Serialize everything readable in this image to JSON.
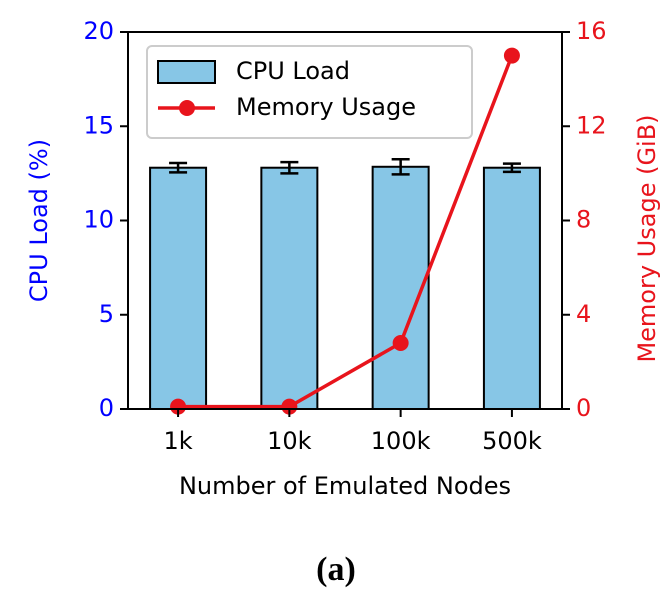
{
  "chart_data": {
    "type": "bar",
    "xlabel": "Number of Emulated Nodes",
    "ylabel": "CPU Load (%)",
    "y2label": "Memory Usage (GiB)",
    "y_axis_color": "#0000ff",
    "y2_axis_color": "#e8141c",
    "categories": [
      "1k",
      "10k",
      "100k",
      "500k"
    ],
    "series": [
      {
        "name": "CPU Load",
        "type": "bar",
        "color": "#87c6e6",
        "values": [
          12.8,
          12.8,
          12.85,
          12.8
        ],
        "errors": [
          0.25,
          0.3,
          0.4,
          0.22
        ]
      },
      {
        "name": "Memory Usage",
        "type": "line",
        "axis": "y2",
        "color": "#e8141c",
        "values": [
          0.1,
          0.1,
          2.8,
          15.0
        ]
      }
    ],
    "ylim": [
      0,
      20
    ],
    "yticks": [
      0,
      5,
      10,
      15,
      20
    ],
    "y2lim": [
      0,
      16
    ],
    "y2ticks": [
      0,
      4,
      8,
      12,
      16
    ],
    "legend": "upper left",
    "caption": "(a)"
  }
}
